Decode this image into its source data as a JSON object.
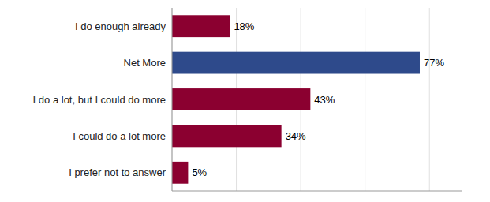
{
  "chart_data": {
    "type": "bar",
    "orientation": "horizontal",
    "categories": [
      "I prefer not to answer",
      "I could do a lot more",
      "I do a lot, but I could do more",
      "Net More",
      "I do enough already"
    ],
    "values": [
      5,
      34,
      43,
      77,
      18
    ],
    "value_labels": [
      "5%",
      "34%",
      "43%",
      "77%",
      "18%"
    ],
    "colors": [
      "#8B0030",
      "#8B0030",
      "#8B0030",
      "#2E4A8B",
      "#8B0030"
    ],
    "xlim": [
      0,
      90
    ],
    "xticks": [
      0,
      20,
      40,
      60,
      80
    ],
    "grid": true,
    "data_labels": true,
    "tick_labels": "y"
  }
}
